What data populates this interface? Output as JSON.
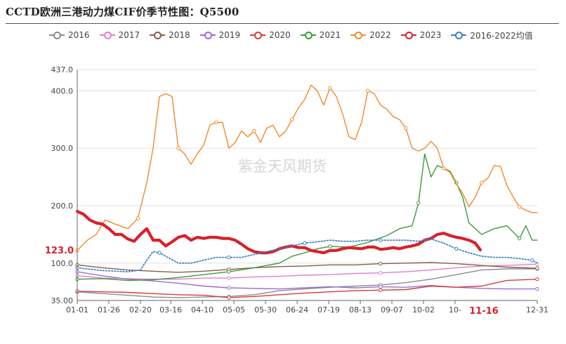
{
  "title": "CCTD欧洲三港动力煤CIF价季节性图：Q5500",
  "watermark": "紫金天风期货",
  "chart_data": {
    "type": "line",
    "title": "CCTD欧洲三港动力煤CIF价季节性图：Q5500",
    "y_ticks": [
      "35.00",
      "100.0",
      "200.0",
      "300.0",
      "400.0",
      "437.0"
    ],
    "y_tick_values": [
      35,
      100,
      200,
      300,
      400,
      437
    ],
    "ylim": [
      35,
      437
    ],
    "x_ticks": [
      "01-01",
      "01-26",
      "02-20",
      "03-16",
      "04-10",
      "05-05",
      "05-30",
      "06-24",
      "07-19",
      "08-13",
      "09-07",
      "10-02",
      "10-",
      "12-31"
    ],
    "x_tick_days": [
      0,
      25,
      50,
      74,
      99,
      124,
      149,
      174,
      199,
      224,
      249,
      274,
      299,
      364
    ],
    "current_label": "123.0",
    "current_value": 123,
    "date_marker": "11-16",
    "date_marker_day": 319,
    "grid": true,
    "legend_position": "top",
    "series": [
      {
        "name": "2016",
        "color": "#8c8c8c",
        "style": "solid",
        "points": [
          [
            0,
            50
          ],
          [
            20,
            47
          ],
          [
            40,
            44
          ],
          [
            60,
            41
          ],
          [
            80,
            40
          ],
          [
            100,
            41
          ],
          [
            120,
            42
          ],
          [
            140,
            45
          ],
          [
            160,
            52
          ],
          [
            180,
            55
          ],
          [
            200,
            58
          ],
          [
            220,
            60
          ],
          [
            240,
            62
          ],
          [
            260,
            66
          ],
          [
            280,
            72
          ],
          [
            300,
            80
          ],
          [
            320,
            88
          ],
          [
            340,
            90
          ],
          [
            364,
            90
          ]
        ]
      },
      {
        "name": "2017",
        "color": "#e07fd0",
        "style": "solid",
        "points": [
          [
            0,
            78
          ],
          [
            20,
            74
          ],
          [
            40,
            73
          ],
          [
            60,
            72
          ],
          [
            80,
            72
          ],
          [
            100,
            74
          ],
          [
            120,
            74
          ],
          [
            140,
            76
          ],
          [
            160,
            77
          ],
          [
            180,
            79
          ],
          [
            200,
            80
          ],
          [
            220,
            82
          ],
          [
            240,
            83
          ],
          [
            260,
            85
          ],
          [
            280,
            88
          ],
          [
            300,
            92
          ],
          [
            320,
            95
          ],
          [
            340,
            96
          ],
          [
            364,
            98
          ]
        ]
      },
      {
        "name": "2018",
        "color": "#8b5a4a",
        "style": "solid",
        "points": [
          [
            0,
            97
          ],
          [
            20,
            92
          ],
          [
            40,
            88
          ],
          [
            60,
            86
          ],
          [
            80,
            84
          ],
          [
            100,
            86
          ],
          [
            120,
            89
          ],
          [
            140,
            92
          ],
          [
            160,
            94
          ],
          [
            180,
            95
          ],
          [
            200,
            97
          ],
          [
            220,
            97
          ],
          [
            240,
            99
          ],
          [
            260,
            100
          ],
          [
            280,
            101
          ],
          [
            300,
            99
          ],
          [
            320,
            96
          ],
          [
            340,
            93
          ],
          [
            364,
            91
          ]
        ]
      },
      {
        "name": "2019",
        "color": "#9a6fd0",
        "style": "solid",
        "points": [
          [
            0,
            85
          ],
          [
            20,
            78
          ],
          [
            40,
            72
          ],
          [
            60,
            69
          ],
          [
            80,
            65
          ],
          [
            100,
            60
          ],
          [
            120,
            57
          ],
          [
            140,
            56
          ],
          [
            160,
            55
          ],
          [
            180,
            57
          ],
          [
            200,
            59
          ],
          [
            220,
            57
          ],
          [
            240,
            59
          ],
          [
            260,
            58
          ],
          [
            280,
            61
          ],
          [
            300,
            58
          ],
          [
            320,
            56
          ],
          [
            340,
            55
          ],
          [
            364,
            55
          ]
        ]
      },
      {
        "name": "2020",
        "color": "#d83a3a",
        "style": "solid",
        "points": [
          [
            0,
            51
          ],
          [
            20,
            50
          ],
          [
            40,
            49
          ],
          [
            60,
            47
          ],
          [
            80,
            45
          ],
          [
            100,
            44
          ],
          [
            120,
            40
          ],
          [
            140,
            42
          ],
          [
            160,
            45
          ],
          [
            180,
            48
          ],
          [
            200,
            50
          ],
          [
            220,
            52
          ],
          [
            240,
            53
          ],
          [
            260,
            54
          ],
          [
            280,
            60
          ],
          [
            300,
            58
          ],
          [
            320,
            60
          ],
          [
            340,
            70
          ],
          [
            364,
            72
          ]
        ]
      },
      {
        "name": "2021",
        "color": "#3a9a3a",
        "style": "solid",
        "points": [
          [
            0,
            72
          ],
          [
            20,
            73
          ],
          [
            40,
            70
          ],
          [
            60,
            71
          ],
          [
            80,
            75
          ],
          [
            100,
            80
          ],
          [
            120,
            85
          ],
          [
            140,
            92
          ],
          [
            160,
            100
          ],
          [
            170,
            112
          ],
          [
            180,
            118
          ],
          [
            190,
            125
          ],
          [
            200,
            129
          ],
          [
            215,
            128
          ],
          [
            230,
            136
          ],
          [
            245,
            148
          ],
          [
            255,
            160
          ],
          [
            265,
            165
          ],
          [
            270,
            205
          ],
          [
            275,
            290
          ],
          [
            280,
            250
          ],
          [
            285,
            270
          ],
          [
            290,
            265
          ],
          [
            295,
            260
          ],
          [
            300,
            240
          ],
          [
            305,
            215
          ],
          [
            310,
            170
          ],
          [
            320,
            150
          ],
          [
            330,
            160
          ],
          [
            340,
            165
          ],
          [
            350,
            143
          ],
          [
            355,
            165
          ],
          [
            360,
            140
          ],
          [
            364,
            140
          ]
        ]
      },
      {
        "name": "2022",
        "color": "#f08a2a",
        "style": "solid",
        "points": [
          [
            0,
            122
          ],
          [
            8,
            140
          ],
          [
            15,
            150
          ],
          [
            22,
            175
          ],
          [
            30,
            168
          ],
          [
            40,
            160
          ],
          [
            48,
            178
          ],
          [
            55,
            240
          ],
          [
            60,
            300
          ],
          [
            65,
            390
          ],
          [
            70,
            395
          ],
          [
            75,
            390
          ],
          [
            80,
            300
          ],
          [
            85,
            290
          ],
          [
            90,
            272
          ],
          [
            95,
            290
          ],
          [
            100,
            305
          ],
          [
            105,
            340
          ],
          [
            110,
            345
          ],
          [
            115,
            345
          ],
          [
            120,
            300
          ],
          [
            125,
            310
          ],
          [
            130,
            330
          ],
          [
            135,
            320
          ],
          [
            140,
            330
          ],
          [
            145,
            310
          ],
          [
            150,
            335
          ],
          [
            155,
            340
          ],
          [
            160,
            320
          ],
          [
            165,
            330
          ],
          [
            170,
            350
          ],
          [
            175,
            370
          ],
          [
            180,
            385
          ],
          [
            185,
            410
          ],
          [
            190,
            400
          ],
          [
            195,
            375
          ],
          [
            200,
            405
          ],
          [
            205,
            390
          ],
          [
            210,
            360
          ],
          [
            215,
            320
          ],
          [
            220,
            315
          ],
          [
            225,
            345
          ],
          [
            230,
            400
          ],
          [
            235,
            395
          ],
          [
            240,
            375
          ],
          [
            245,
            368
          ],
          [
            250,
            355
          ],
          [
            255,
            350
          ],
          [
            260,
            335
          ],
          [
            265,
            300
          ],
          [
            270,
            295
          ],
          [
            275,
            300
          ],
          [
            280,
            312
          ],
          [
            285,
            300
          ],
          [
            290,
            265
          ],
          [
            295,
            258
          ],
          [
            300,
            238
          ],
          [
            305,
            222
          ],
          [
            310,
            198
          ],
          [
            315,
            215
          ],
          [
            320,
            240
          ],
          [
            325,
            248
          ],
          [
            330,
            270
          ],
          [
            335,
            268
          ],
          [
            340,
            235
          ],
          [
            345,
            215
          ],
          [
            350,
            198
          ],
          [
            355,
            192
          ],
          [
            360,
            188
          ],
          [
            364,
            188
          ]
        ]
      },
      {
        "name": "2023",
        "color": "#d9202a",
        "style": "bold",
        "points": [
          [
            0,
            190
          ],
          [
            5,
            185
          ],
          [
            10,
            175
          ],
          [
            15,
            170
          ],
          [
            20,
            168
          ],
          [
            25,
            160
          ],
          [
            30,
            150
          ],
          [
            35,
            150
          ],
          [
            40,
            142
          ],
          [
            45,
            138
          ],
          [
            50,
            150
          ],
          [
            55,
            160
          ],
          [
            60,
            140
          ],
          [
            65,
            140
          ],
          [
            70,
            130
          ],
          [
            75,
            137
          ],
          [
            80,
            145
          ],
          [
            85,
            148
          ],
          [
            90,
            140
          ],
          [
            95,
            145
          ],
          [
            100,
            143
          ],
          [
            105,
            145
          ],
          [
            110,
            145
          ],
          [
            115,
            143
          ],
          [
            120,
            143
          ],
          [
            125,
            140
          ],
          [
            130,
            133
          ],
          [
            135,
            125
          ],
          [
            140,
            120
          ],
          [
            145,
            118
          ],
          [
            150,
            118
          ],
          [
            155,
            120
          ],
          [
            160,
            125
          ],
          [
            165,
            128
          ],
          [
            170,
            130
          ],
          [
            175,
            127
          ],
          [
            180,
            127
          ],
          [
            185,
            122
          ],
          [
            190,
            120
          ],
          [
            195,
            118
          ],
          [
            200,
            122
          ],
          [
            205,
            122
          ],
          [
            210,
            125
          ],
          [
            215,
            127
          ],
          [
            220,
            126
          ],
          [
            225,
            125
          ],
          [
            230,
            128
          ],
          [
            235,
            128
          ],
          [
            240,
            124
          ],
          [
            245,
            125
          ],
          [
            250,
            127
          ],
          [
            255,
            125
          ],
          [
            260,
            128
          ],
          [
            265,
            130
          ],
          [
            270,
            133
          ],
          [
            275,
            140
          ],
          [
            280,
            143
          ],
          [
            285,
            150
          ],
          [
            290,
            152
          ],
          [
            295,
            148
          ],
          [
            300,
            145
          ],
          [
            305,
            143
          ],
          [
            310,
            140
          ],
          [
            315,
            135
          ],
          [
            319,
            123
          ]
        ]
      },
      {
        "name": "2016-2022均值",
        "color": "#3a80c0",
        "style": "dotted",
        "points": [
          [
            0,
            92
          ],
          [
            20,
            87
          ],
          [
            40,
            85
          ],
          [
            50,
            88
          ],
          [
            55,
            105
          ],
          [
            60,
            120
          ],
          [
            65,
            118
          ],
          [
            70,
            112
          ],
          [
            80,
            100
          ],
          [
            90,
            100
          ],
          [
            100,
            105
          ],
          [
            110,
            110
          ],
          [
            120,
            110
          ],
          [
            130,
            110
          ],
          [
            140,
            115
          ],
          [
            150,
            120
          ],
          [
            160,
            125
          ],
          [
            170,
            130
          ],
          [
            180,
            135
          ],
          [
            190,
            137
          ],
          [
            200,
            140
          ],
          [
            210,
            138
          ],
          [
            220,
            138
          ],
          [
            230,
            140
          ],
          [
            240,
            140
          ],
          [
            250,
            140
          ],
          [
            260,
            140
          ],
          [
            270,
            138
          ],
          [
            280,
            142
          ],
          [
            290,
            135
          ],
          [
            300,
            125
          ],
          [
            310,
            118
          ],
          [
            320,
            112
          ],
          [
            330,
            110
          ],
          [
            340,
            110
          ],
          [
            350,
            108
          ],
          [
            360,
            105
          ],
          [
            364,
            100
          ]
        ]
      }
    ]
  }
}
